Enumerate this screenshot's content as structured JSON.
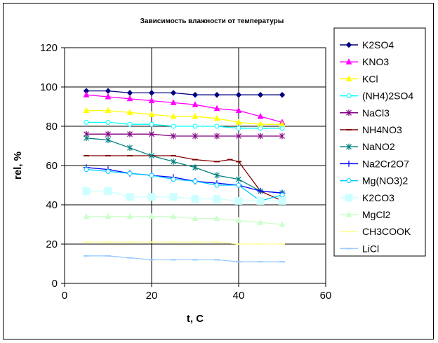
{
  "chart_data": {
    "type": "line",
    "title": "Зависимость влажности от температуры",
    "xlabel": "t, C",
    "ylabel": "rel, %",
    "xlim": [
      0,
      60
    ],
    "ylim": [
      0,
      120
    ],
    "xticks": [
      0,
      20,
      40,
      60
    ],
    "yticks": [
      0,
      20,
      40,
      60,
      80,
      100,
      120
    ],
    "grid": true,
    "legend_position": "right",
    "series": [
      {
        "name": "K2SO4",
        "color": "#000080",
        "marker": "diamond",
        "x": [
          5,
          10,
          15,
          20,
          25,
          30,
          35,
          40,
          45,
          50
        ],
        "y": [
          98,
          98,
          97,
          97,
          97,
          96,
          96,
          96,
          96,
          96
        ]
      },
      {
        "name": "KNO3",
        "color": "#ff00ff",
        "marker": "triangle",
        "x": [
          5,
          10,
          15,
          20,
          25,
          30,
          35,
          40,
          45,
          50
        ],
        "y": [
          96,
          95,
          94,
          93,
          92,
          91,
          89,
          88,
          85,
          82
        ]
      },
      {
        "name": "KCl",
        "color": "#ffff00",
        "marker": "triangle",
        "x": [
          5,
          10,
          15,
          20,
          25,
          30,
          35,
          40,
          45,
          50
        ],
        "y": [
          88,
          88,
          87,
          86,
          85,
          85,
          84,
          82,
          81,
          81
        ]
      },
      {
        "name": "(NH4)2SO4",
        "color": "#00ffff",
        "marker": "circle",
        "x": [
          5,
          10,
          15,
          20,
          25,
          30,
          35,
          40,
          45,
          50
        ],
        "y": [
          82,
          82,
          81,
          81,
          80,
          80,
          80,
          79,
          79,
          79
        ]
      },
      {
        "name": "NaCl3",
        "color": "#800080",
        "marker": "star",
        "x": [
          5,
          10,
          15,
          20,
          25,
          30,
          35,
          40,
          45,
          50
        ],
        "y": [
          76,
          76,
          76,
          76,
          75,
          75,
          75,
          75,
          75,
          75
        ]
      },
      {
        "name": "NH4NO3",
        "color": "#800000",
        "marker": "dash",
        "x": [
          5,
          10,
          15,
          20,
          25,
          30,
          35,
          38,
          40,
          45,
          50
        ],
        "y": [
          65,
          65,
          65,
          65,
          65,
          63,
          62,
          63,
          62,
          47,
          42
        ]
      },
      {
        "name": "NaNO2",
        "color": "#008080",
        "marker": "star",
        "x": [
          5,
          10,
          15,
          20,
          25,
          30,
          35,
          40,
          45,
          50
        ],
        "y": [
          74,
          73,
          69,
          65,
          62,
          59,
          55,
          53,
          47,
          46
        ]
      },
      {
        "name": "Na2Cr2O7",
        "color": "#0000ff",
        "marker": "plus",
        "x": [
          5,
          10,
          15,
          20,
          25,
          30,
          35,
          40,
          45,
          50
        ],
        "y": [
          59,
          58,
          56,
          55,
          54,
          52,
          51,
          50,
          47,
          46
        ]
      },
      {
        "name": "Mg(NO3)2",
        "color": "#00ccff",
        "marker": "circle",
        "x": [
          5,
          10,
          15,
          20,
          25,
          30,
          35,
          40,
          45,
          50
        ],
        "y": [
          58,
          57,
          56,
          55,
          53,
          52,
          50,
          50,
          42,
          45
        ]
      },
      {
        "name": "K2CO3",
        "color": "#ccffff",
        "marker": "square",
        "x": [
          5,
          10,
          15,
          20,
          25,
          30,
          35,
          40,
          45,
          50
        ],
        "y": [
          47,
          47,
          44,
          44,
          44,
          43,
          43,
          42,
          42,
          42
        ]
      },
      {
        "name": "MgCl2",
        "color": "#ccffcc",
        "marker": "triangle",
        "x": [
          5,
          10,
          15,
          20,
          25,
          30,
          35,
          40,
          45,
          50
        ],
        "y": [
          34,
          34,
          34,
          34,
          34,
          33,
          33,
          32,
          31,
          30
        ]
      },
      {
        "name": "CH3COOK",
        "color": "#ffff99",
        "marker": "dash",
        "x": [
          5,
          10,
          15,
          20,
          25,
          30,
          35,
          40,
          45,
          50
        ],
        "y": [
          21,
          21,
          21,
          21,
          21,
          21,
          21,
          20,
          20,
          20
        ]
      },
      {
        "name": "LiCl",
        "color": "#99ccff",
        "marker": "dash",
        "x": [
          5,
          10,
          15,
          20,
          25,
          30,
          35,
          40,
          45,
          50
        ],
        "y": [
          14,
          14,
          13,
          12,
          12,
          12,
          12,
          11,
          11,
          11
        ]
      }
    ]
  }
}
